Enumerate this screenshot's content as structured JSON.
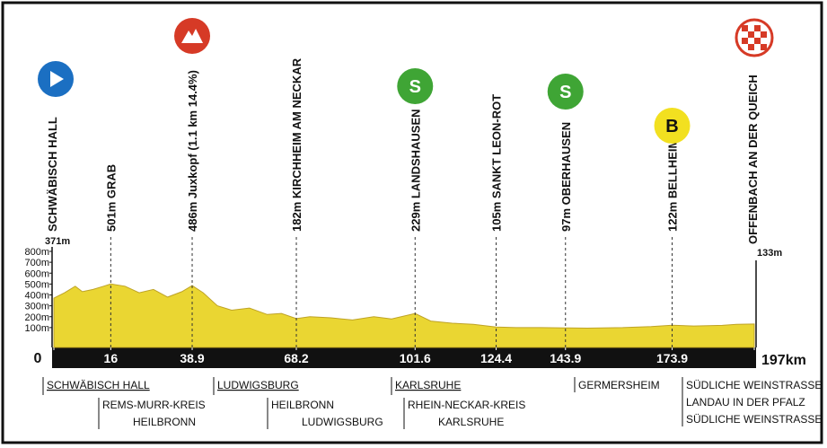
{
  "chart_data": {
    "type": "area",
    "x": [
      0,
      3,
      6,
      8,
      11,
      14,
      16,
      20,
      24,
      28,
      32,
      36,
      38.9,
      42,
      46,
      50,
      55,
      60,
      64,
      68.2,
      72,
      78,
      84,
      90,
      95,
      101.6,
      106,
      112,
      118,
      124.4,
      130,
      137,
      143.9,
      150,
      160,
      168,
      173.9,
      180,
      188,
      192,
      197
    ],
    "values": [
      371,
      420,
      480,
      430,
      450,
      480,
      501,
      480,
      420,
      450,
      380,
      430,
      486,
      420,
      300,
      260,
      280,
      220,
      230,
      182,
      200,
      190,
      170,
      200,
      180,
      229,
      160,
      140,
      130,
      105,
      100,
      100,
      97,
      95,
      100,
      110,
      122,
      115,
      120,
      130,
      133
    ],
    "color": "#e8d21c",
    "xlim": [
      0,
      197
    ],
    "xticks": [
      0,
      16,
      38.9,
      68.2,
      101.6,
      124.4,
      143.9,
      173.9,
      {
        "value": 197,
        "label": "197km"
      }
    ],
    "ylim": [
      0,
      800
    ],
    "yticks": [
      {
        "value": 100,
        "label": "100m"
      },
      {
        "value": 200,
        "label": "200m"
      },
      {
        "value": 300,
        "label": "300m"
      },
      {
        "value": 400,
        "label": "400m"
      },
      {
        "value": 500,
        "label": "500m"
      },
      {
        "value": 600,
        "label": "600m"
      },
      {
        "value": 700,
        "label": "700m"
      },
      {
        "value": 800,
        "label": "800m"
      }
    ],
    "start": {
      "label": "SCHWÄBISCH HALL",
      "elevation": "371m",
      "icon": "start"
    },
    "finish": {
      "label": "OFFENBACH AN DER QUEICH",
      "elevation": "133m",
      "icon": "finish"
    },
    "waypoints": [
      {
        "km": 16,
        "label": "501m  GRAB"
      },
      {
        "km": 38.9,
        "label": "486m Juxkopf (1.1 km 14.4%)",
        "icon": "mountain"
      },
      {
        "km": 68.2,
        "label": "182m KIRCHHEIM AM NECKAR"
      },
      {
        "km": 101.6,
        "label": "229m LANDSHAUSEN",
        "icon": "sprint",
        "icon_text": "S"
      },
      {
        "km": 124.4,
        "label": "105m SANKT LEON-ROT"
      },
      {
        "km": 143.9,
        "label": "97m  OBERHAUSEN",
        "icon": "sprint",
        "icon_text": "S"
      },
      {
        "km": 173.9,
        "label": "122m BELLHEIM",
        "icon": "bonus",
        "icon_text": "B"
      }
    ],
    "regions": [
      {
        "name": "SCHWÄBISCH HALL",
        "sub": [
          "REMS-MURR-KREIS",
          "HEILBRONN"
        ]
      },
      {
        "name": "LUDWIGSBURG",
        "sub": [
          "HEILBRONN",
          "LUDWIGSBURG"
        ]
      },
      {
        "name": "KARLSRUHE",
        "sub": [
          "RHEIN-NECKAR-KREIS",
          "KARLSRUHE"
        ]
      },
      {
        "sub": [
          "GERMERSHEIM"
        ]
      },
      {
        "sub": [
          "SÜDLICHE WEINSTRASSE",
          "LANDAU IN DER PFALZ",
          "SÜDLICHE WEINSTRASSE"
        ]
      }
    ]
  }
}
